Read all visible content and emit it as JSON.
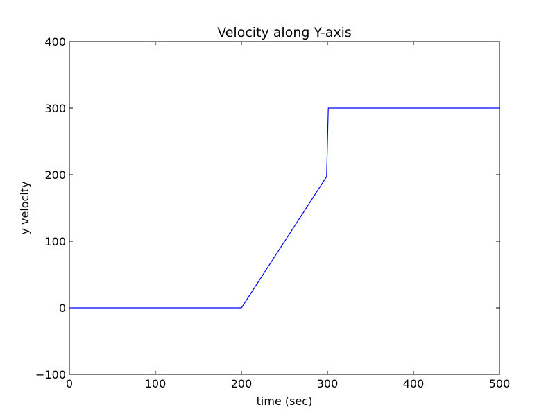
{
  "chart_data": {
    "type": "line",
    "title": "Velocity along Y-axis",
    "xlabel": "time (sec)",
    "ylabel": "y velocity",
    "xlim": [
      0,
      500
    ],
    "ylim": [
      -100,
      400
    ],
    "xticks": [
      0,
      100,
      200,
      300,
      400,
      500
    ],
    "yticks": [
      -100,
      0,
      100,
      200,
      300,
      400
    ],
    "xtick_labels": [
      "0",
      "100",
      "200",
      "300",
      "400",
      "500"
    ],
    "ytick_labels": [
      "−100",
      "0",
      "100",
      "200",
      "300",
      "400"
    ],
    "grid": false,
    "series": [
      {
        "color": "#0000ff",
        "x": [
          0,
          200,
          299,
          301,
          500
        ],
        "y": [
          0,
          0,
          197,
          300,
          300
        ]
      }
    ]
  }
}
